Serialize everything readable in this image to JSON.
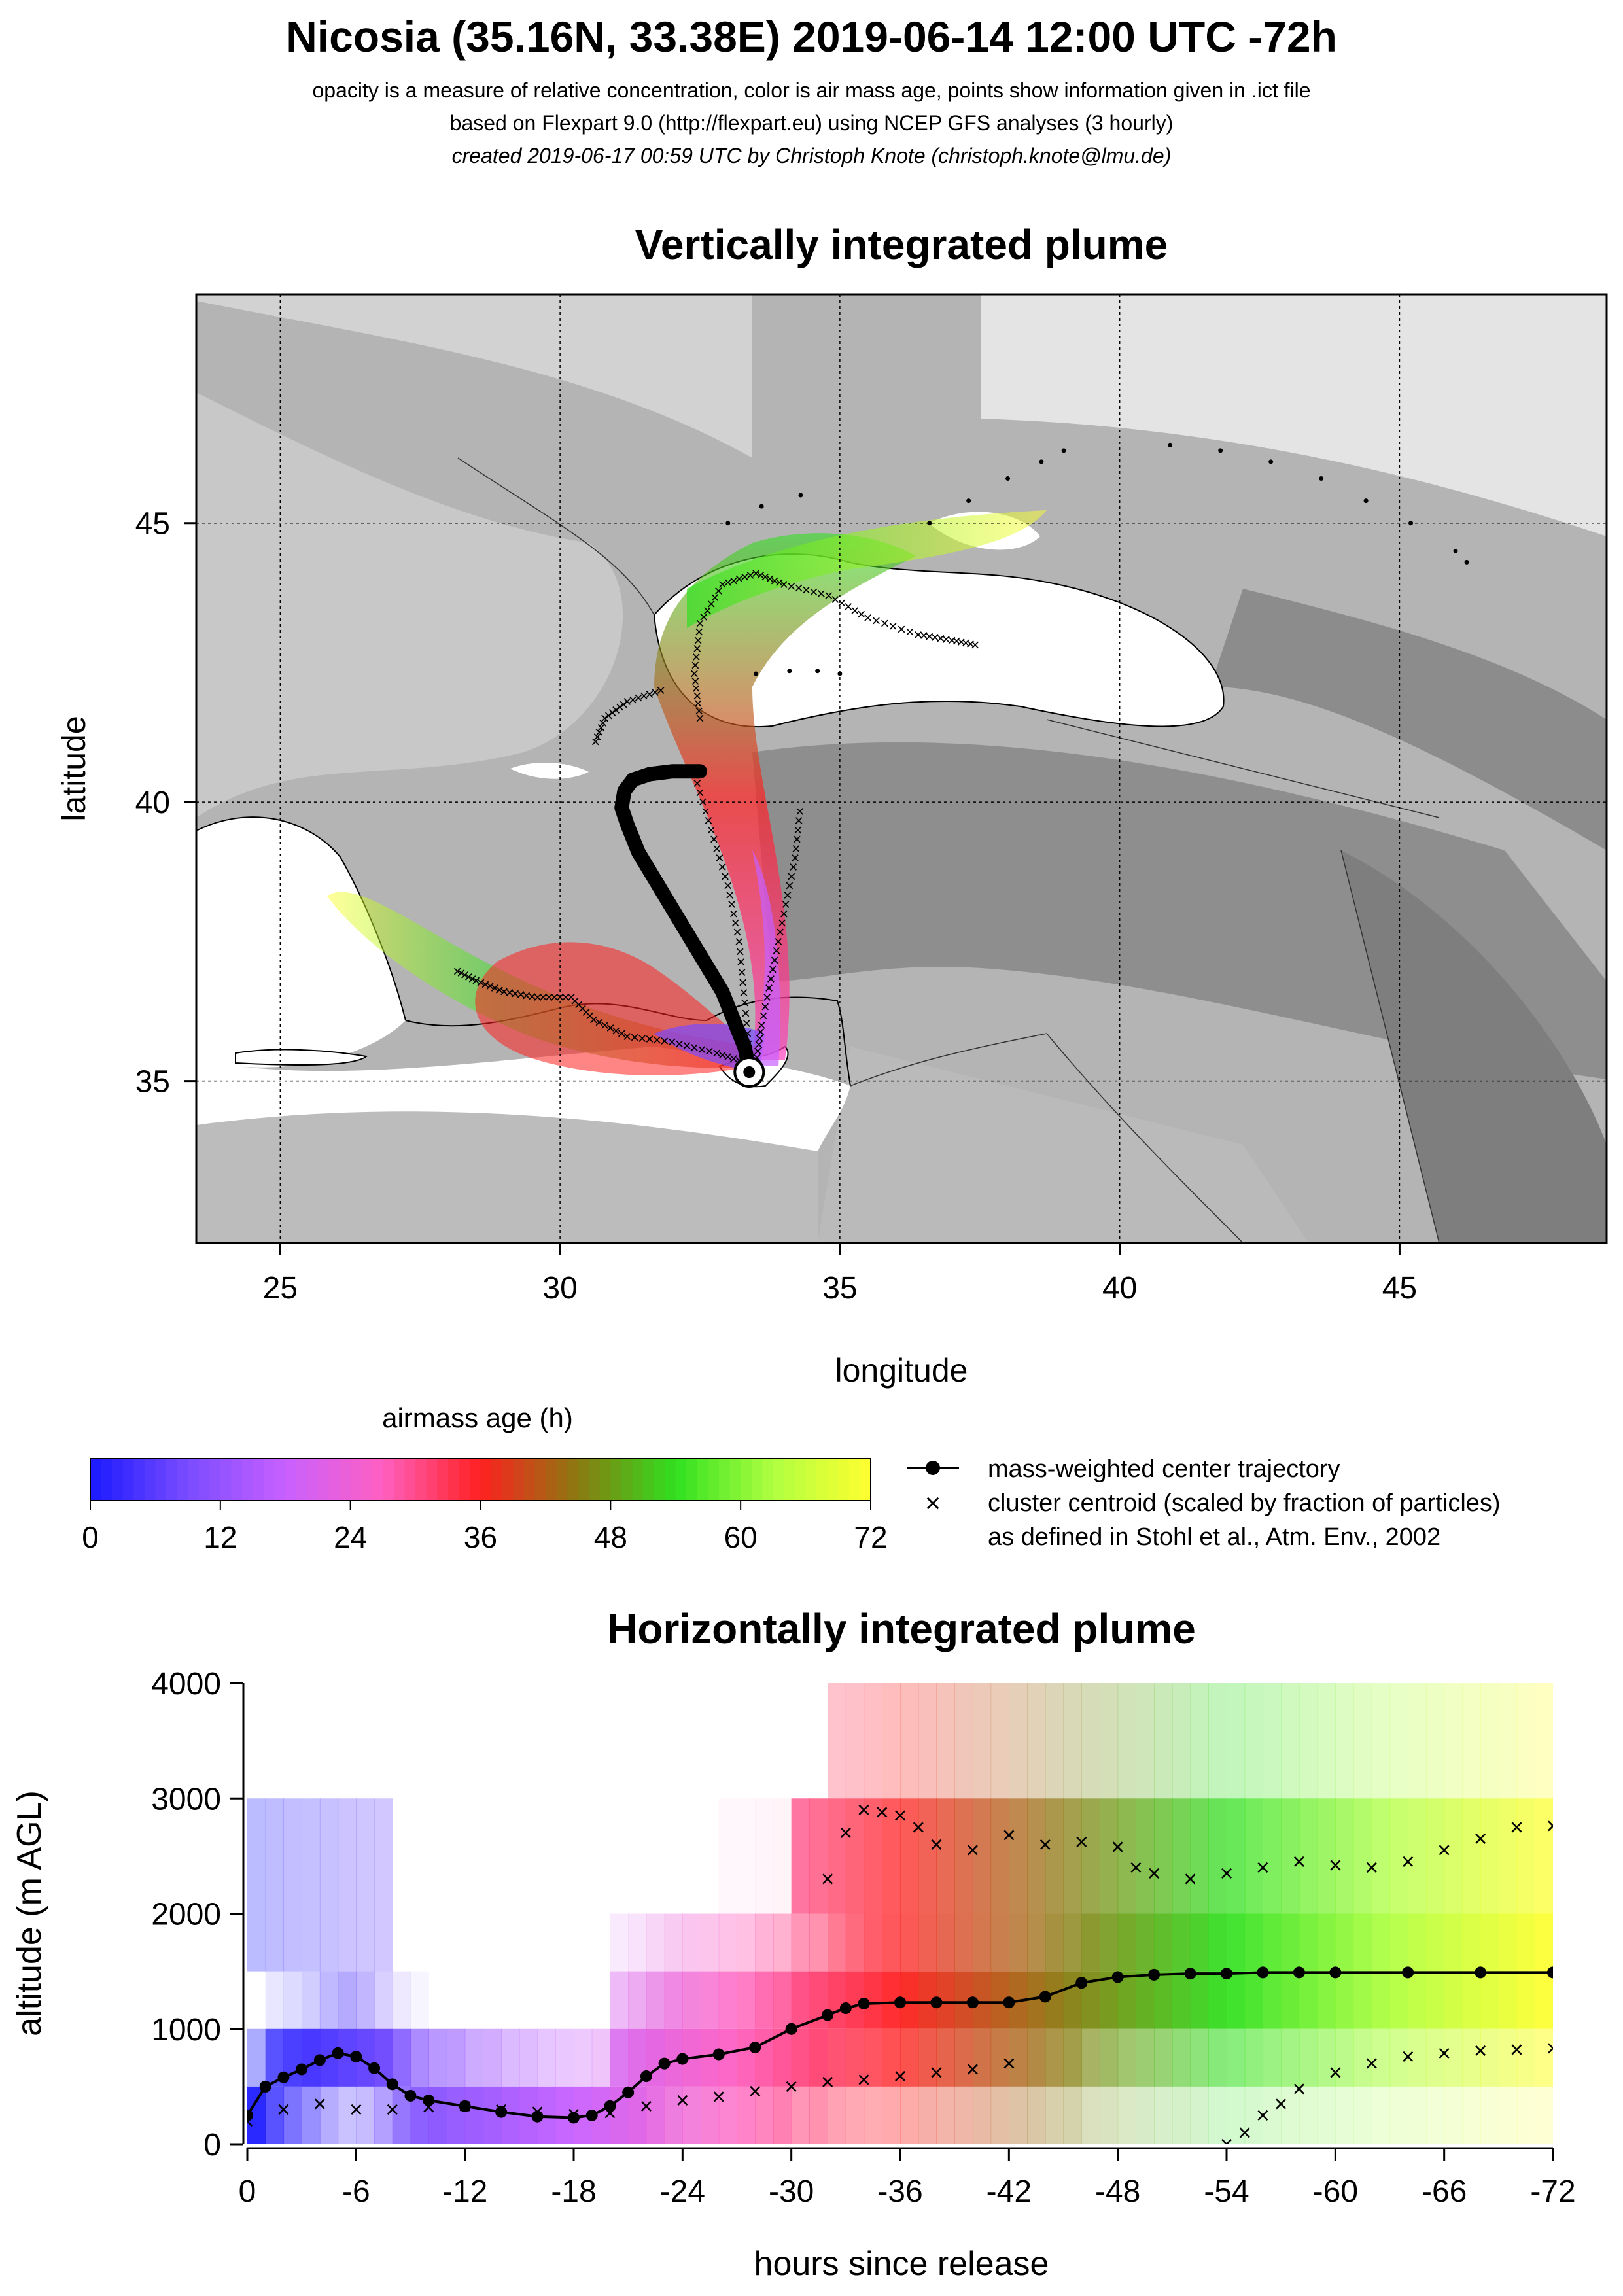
{
  "header": {
    "title": "Nicosia (35.16N, 33.38E) 2019-06-14 12:00 UTC -72h",
    "line1": "opacity is a measure of relative concentration, color is air mass age, points show information given in .ict file",
    "line2": "based on Flexpart 9.0 (http://flexpart.eu) using NCEP GFS analyses (3 hourly)",
    "line3": "created 2019-06-17 00:59 UTC by Christoph Knote (christoph.knote@lmu.de)"
  },
  "colors": {
    "age_palette": [
      "#1a1aff",
      "#7a4cff",
      "#c860ff",
      "#ff60c0",
      "#ff2020",
      "#8a7a10",
      "#30e020",
      "#b0ff40",
      "#ffff30"
    ],
    "center_trajectory": "#000000",
    "terrain_dark": "#8c8c8c",
    "terrain_light": "#dcdcdc",
    "sea": "#ffffff"
  },
  "chart_data": [
    {
      "type": "map",
      "title": "Vertically integrated plume",
      "xlabel": "longitude",
      "ylabel": "latitude",
      "xlim": [
        23.5,
        48.7
      ],
      "ylim": [
        32.1,
        49.1
      ],
      "x_ticks": [
        25,
        30,
        35,
        40,
        45
      ],
      "y_ticks": [
        35,
        40,
        45
      ],
      "x_tick_labels": [
        "25",
        "30",
        "35",
        "40",
        "45"
      ],
      "y_tick_labels": [
        "35",
        "40",
        "45"
      ],
      "grid": true,
      "release_point": {
        "lon": 33.38,
        "lat": 35.16
      },
      "center_trajectory": {
        "name": "mass-weighted center trajectory",
        "lon": [
          33.38,
          33.3,
          33.1,
          32.9,
          32.6,
          32.3,
          32.0,
          31.7,
          31.4,
          31.2,
          31.1,
          31.15,
          31.3,
          31.6,
          32.0,
          32.5
        ],
        "lat": [
          35.2,
          35.6,
          36.1,
          36.6,
          37.1,
          37.6,
          38.1,
          38.6,
          39.1,
          39.6,
          39.9,
          40.2,
          40.4,
          40.5,
          40.55,
          40.55
        ]
      },
      "cluster_tracks": [
        {
          "lon": [
            33.4,
            32.8,
            32.0,
            31.2,
            30.6,
            30.2
          ],
          "lat": [
            35.3,
            35.5,
            35.7,
            35.8,
            36.1,
            36.5
          ]
        },
        {
          "lon": [
            30.2,
            29.6,
            29.0,
            28.5,
            28.1
          ],
          "lat": [
            36.5,
            36.5,
            36.6,
            36.8,
            37.0
          ]
        },
        {
          "lon": [
            33.4,
            33.3,
            33.2,
            33.0,
            32.7,
            32.4
          ],
          "lat": [
            35.3,
            36.4,
            37.5,
            38.5,
            39.5,
            40.5
          ]
        },
        {
          "lon": [
            32.5,
            32.4,
            32.5,
            32.9,
            33.5,
            34.0
          ],
          "lat": [
            41.5,
            42.3,
            43.2,
            43.9,
            44.1,
            43.9
          ]
        },
        {
          "lon": [
            34.0,
            34.8,
            35.5,
            36.4,
            37.0,
            37.5
          ],
          "lat": [
            43.9,
            43.7,
            43.3,
            43.0,
            42.9,
            42.8
          ]
        },
        {
          "lon": [
            31.8,
            31.2,
            30.8,
            30.6
          ],
          "lat": [
            42.0,
            41.8,
            41.5,
            41.0
          ]
        },
        {
          "lon": [
            33.5,
            33.6,
            33.8,
            34.0,
            34.2,
            34.3
          ],
          "lat": [
            35.3,
            36.0,
            37.0,
            38.0,
            39.0,
            40.0
          ]
        }
      ],
      "dotted_tracks": [
        {
          "lon": [
            36.6,
            37.3,
            38.0,
            38.6,
            39.0
          ],
          "lat": [
            45.0,
            45.4,
            45.8,
            46.1,
            46.3
          ]
        },
        {
          "lon": [
            40.9,
            41.8,
            42.7,
            43.6,
            44.4,
            45.2,
            46.0,
            46.2
          ],
          "lat": [
            46.4,
            46.3,
            46.1,
            45.8,
            45.4,
            45.0,
            44.5,
            44.3
          ]
        },
        {
          "lon": [
            33.5,
            34.1,
            34.6,
            35.0
          ],
          "lat": [
            42.3,
            42.35,
            42.35,
            42.3
          ]
        },
        {
          "lon": [
            33.0,
            33.6,
            34.3
          ],
          "lat": [
            45.0,
            45.3,
            45.5
          ]
        }
      ]
    },
    {
      "type": "colorbar",
      "label": "airmass age (h)",
      "range": [
        0,
        72
      ],
      "ticks": [
        0,
        12,
        24,
        36,
        48,
        60,
        72
      ],
      "tick_labels": [
        "0",
        "12",
        "24",
        "36",
        "48",
        "60",
        "72"
      ],
      "legend": [
        "mass-weighted center trajectory",
        "cluster centroid (scaled by fraction of particles)",
        "as defined in Stohl et al., Atm. Env., 2002"
      ]
    },
    {
      "type": "line",
      "title": "Horizontally integrated plume",
      "xlabel": "hours since release",
      "ylabel": "altitude (m AGL)",
      "xlim": [
        0,
        -72
      ],
      "ylim": [
        0,
        4000
      ],
      "x_ticks": [
        0,
        -6,
        -12,
        -18,
        -24,
        -30,
        -36,
        -42,
        -48,
        -54,
        -60,
        -66,
        -72
      ],
      "x_tick_labels": [
        "0",
        "-6",
        "-12",
        "-18",
        "-24",
        "-30",
        "-36",
        "-42",
        "-48",
        "-54",
        "-60",
        "-66",
        "-72"
      ],
      "y_ticks": [
        0,
        1000,
        2000,
        3000,
        4000
      ],
      "y_tick_labels": [
        "0",
        "1000",
        "2000",
        "3000",
        "4000"
      ],
      "series": [
        {
          "name": "mass-weighted center trajectory",
          "x": [
            0,
            -1,
            -2,
            -3,
            -4,
            -5,
            -6,
            -7,
            -8,
            -9,
            -10,
            -12,
            -14,
            -16,
            -18,
            -19,
            -20,
            -21,
            -22,
            -23,
            -24,
            -26,
            -28,
            -30,
            -32,
            -33,
            -34,
            -36,
            -38,
            -40,
            -42,
            -44,
            -46,
            -48,
            -50,
            -52,
            -54,
            -56,
            -58,
            -60,
            -64,
            -68,
            -72
          ],
          "y": [
            250,
            500,
            580,
            650,
            730,
            790,
            760,
            660,
            520,
            420,
            380,
            330,
            280,
            240,
            230,
            250,
            330,
            450,
            590,
            700,
            740,
            780,
            840,
            1000,
            1120,
            1180,
            1220,
            1230,
            1230,
            1230,
            1230,
            1280,
            1400,
            1450,
            1470,
            1480,
            1480,
            1490,
            1490,
            1490,
            1490,
            1490,
            1490
          ]
        },
        {
          "name": "cluster centroid",
          "x": [
            0,
            -2,
            -4,
            -6,
            -8,
            -10,
            -12,
            -14,
            -16,
            -18,
            -20,
            -22,
            -24,
            -26,
            -28,
            -30,
            -32,
            -34,
            -36,
            -38,
            -40,
            -42
          ],
          "y": [
            200,
            300,
            350,
            300,
            300,
            320,
            330,
            300,
            280,
            260,
            270,
            330,
            380,
            410,
            460,
            500,
            540,
            560,
            590,
            620,
            650,
            700
          ]
        },
        {
          "name": "cluster centroid upper",
          "x": [
            -32,
            -33,
            -34,
            -35,
            -36,
            -37,
            -38,
            -40,
            -42,
            -44,
            -46,
            -48
          ],
          "y": [
            2300,
            2700,
            2900,
            2880,
            2850,
            2750,
            2600,
            2550,
            2680,
            2600,
            2620,
            2580
          ]
        },
        {
          "name": "cluster centroid late",
          "x": [
            -49,
            -50,
            -52,
            -54,
            -56,
            -58,
            -60,
            -62,
            -64,
            -66,
            -68,
            -70,
            -72
          ],
          "y": [
            2400,
            2350,
            2300,
            2350,
            2400,
            2450,
            2420,
            2400,
            2450,
            2550,
            2650,
            2750,
            2760
          ]
        },
        {
          "name": "cluster centroid rising",
          "x": [
            -54,
            -55,
            -56,
            -57,
            -58,
            -60,
            -62,
            -64,
            -66,
            -68,
            -70,
            -72
          ],
          "y": [
            0,
            100,
            250,
            350,
            480,
            620,
            700,
            760,
            790,
            810,
            820,
            830
          ]
        }
      ]
    }
  ]
}
